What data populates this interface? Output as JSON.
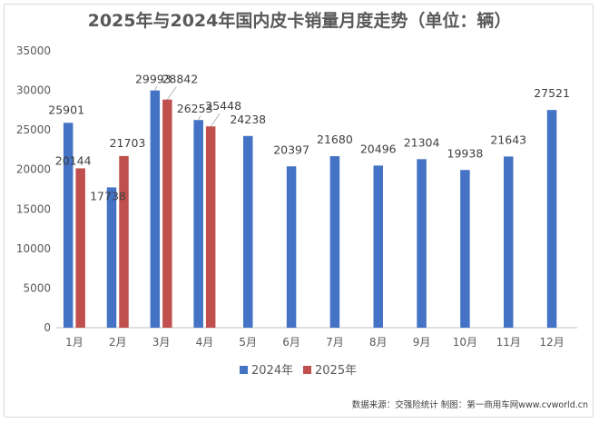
{
  "chart_data": {
    "type": "bar",
    "title": "2025年与2024年国内皮卡销量月度走势（单位：辆）",
    "categories": [
      "1月",
      "2月",
      "3月",
      "4月",
      "5月",
      "6月",
      "7月",
      "8月",
      "9月",
      "10月",
      "11月",
      "12月"
    ],
    "series": [
      {
        "name": "2024年",
        "color": "#4472c4",
        "values": [
          25901,
          17738,
          29993,
          26253,
          24238,
          20397,
          21680,
          20496,
          21304,
          19938,
          21643,
          27521
        ]
      },
      {
        "name": "2025年",
        "color": "#c0504d",
        "values": [
          20144,
          21703,
          28842,
          25448,
          null,
          null,
          null,
          null,
          null,
          null,
          null,
          null
        ]
      }
    ],
    "ylim": [
      0,
      35000
    ],
    "yticks": [
      "0",
      "5000",
      "10000",
      "15000",
      "20000",
      "25000",
      "30000",
      "35000"
    ],
    "grid": false,
    "legend_position": "bottom"
  },
  "source_note": "数据来源：交强险统计 制图：第一商用车网www.cvworld.cn"
}
